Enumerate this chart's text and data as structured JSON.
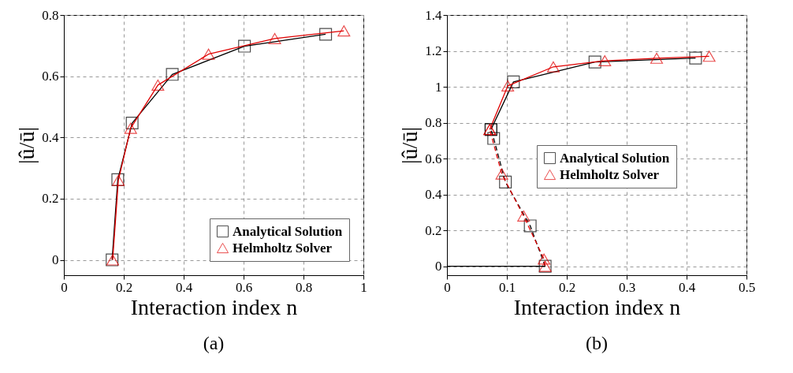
{
  "chart_data": [
    {
      "type": "line",
      "xlabel": "Interaction index n",
      "ylabel": "|û/ū|",
      "annotations": [
        "(a)"
      ],
      "xlim": [
        0,
        1
      ],
      "ylim": [
        -0.05,
        0.8
      ],
      "xticks": [
        0,
        0.2,
        0.4,
        0.6,
        0.8,
        1
      ],
      "yticks": [
        0,
        0.2,
        0.4,
        0.6,
        0.8
      ],
      "grid": true,
      "legend": "bottom right",
      "series": [
        {
          "name": "Analytical Solution",
          "color": "#000000",
          "marker": "square",
          "x": [
            0.161,
            0.18,
            0.228,
            0.362,
            0.603,
            0.874
          ],
          "values": [
            0,
            0.262,
            0.447,
            0.606,
            0.698,
            0.737
          ]
        },
        {
          "name": "Helmholtz Solver",
          "color": "#e00000",
          "marker": "triangle",
          "x": [
            0.163,
            0.182,
            0.223,
            0.314,
            0.483,
            0.704,
            0.935
          ],
          "values": [
            0,
            0.26,
            0.43,
            0.571,
            0.672,
            0.723,
            0.748
          ]
        }
      ]
    },
    {
      "type": "line",
      "xlabel": "Interaction index n",
      "ylabel": "|û/ū|",
      "annotations": [
        "(b)"
      ],
      "xlim": [
        0,
        0.5
      ],
      "ylim": [
        -0.05,
        1.4
      ],
      "xticks": [
        0,
        0.1,
        0.2,
        0.3,
        0.4,
        0.5
      ],
      "yticks": [
        0,
        0.2,
        0.4,
        0.6,
        0.8,
        1,
        1.2,
        1.4
      ],
      "grid": true,
      "legend": "right",
      "series": [
        {
          "name": "Analytical Solution",
          "color": "#000000",
          "marker": "square",
          "line_style": "solid",
          "x": [
            0.0735,
            0.111,
            0.247,
            0.415
          ],
          "values": [
            0.762,
            1.027,
            1.138,
            1.16
          ]
        },
        {
          "name": "Helmholtz Solver",
          "color": "#e00000",
          "marker": "triangle",
          "line_style": "solid",
          "x": [
            0.0714,
            0.1015,
            0.1776,
            0.2635,
            0.35,
            0.4377
          ],
          "values": [
            0.762,
            1.005,
            1.111,
            1.145,
            1.159,
            1.17
          ]
        },
        {
          "color": "#000000",
          "marker": "square",
          "line_style": "dashed",
          "x": [
            0.164,
            0.139,
            0.0976,
            0.078,
            0.0735
          ],
          "values": [
            0,
            0.225,
            0.469,
            0.712,
            0.762
          ]
        },
        {
          "color": "#e00000",
          "marker": "triangle",
          "line_style": "dashed",
          "x": [
            0.164,
            0.162,
            0.128,
            0.0916,
            0.0714
          ],
          "values": [
            0,
            0.04,
            0.28,
            0.514,
            0.762
          ]
        },
        {
          "color": "#000000",
          "marker": "none",
          "line_style": "solid",
          "x": [
            0,
            0.164
          ],
          "values": [
            0,
            0
          ]
        }
      ]
    }
  ]
}
